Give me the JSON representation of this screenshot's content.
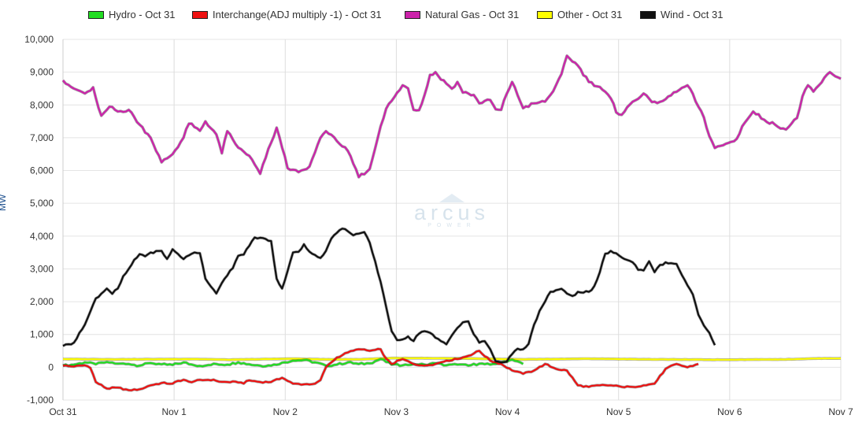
{
  "legend": {
    "items": [
      {
        "label": "Hydro - Oct 31",
        "color": "#22dd22"
      },
      {
        "label": "Interchange(ADJ multiply -1) - Oct 31",
        "color": "#ee1111"
      },
      {
        "label": "Natural Gas - Oct 31",
        "color": "#cc22aa"
      },
      {
        "label": "Other - Oct 31",
        "color": "#ffff00"
      },
      {
        "label": "Wind - Oct 31",
        "color": "#111111"
      }
    ]
  },
  "y_unit_label": "MW",
  "watermark": {
    "brand": "arcus",
    "sub": "POWER"
  },
  "chart_data": {
    "type": "line",
    "x_start": "Oct 31",
    "x_step_hours": 2,
    "x_ticks": [
      "Oct 31",
      "Nov 1",
      "Nov 2",
      "Nov 3",
      "Nov 4",
      "Nov 5",
      "Nov 6",
      "Nov 7"
    ],
    "y_ticks": [
      "-1,000",
      "0",
      "1,000",
      "2,000",
      "3,000",
      "4,000",
      "5,000",
      "6,000",
      "7,000",
      "8,000",
      "9,000",
      "10,000"
    ],
    "ylim": [
      -1000,
      10000
    ],
    "grid": true,
    "legend_position": "top",
    "series": [
      {
        "name": "Hydro - Oct 31",
        "color": "#22dd22",
        "anchors": [
          [
            0,
            50
          ],
          [
            4,
            80
          ],
          [
            8,
            150
          ],
          [
            12,
            90
          ],
          [
            16,
            160
          ],
          [
            20,
            110
          ],
          [
            24,
            100
          ],
          [
            28,
            50
          ],
          [
            32,
            130
          ],
          [
            36,
            90
          ],
          [
            40,
            70
          ],
          [
            44,
            150
          ],
          [
            48,
            60
          ],
          [
            52,
            50
          ],
          [
            56,
            100
          ],
          [
            60,
            80
          ],
          [
            64,
            150
          ],
          [
            68,
            90
          ],
          [
            72,
            50
          ],
          [
            76,
            50
          ],
          [
            80,
            140
          ],
          [
            84,
            200
          ],
          [
            88,
            220
          ],
          [
            92,
            150
          ],
          [
            96,
            50
          ],
          [
            100,
            80
          ],
          [
            104,
            150
          ],
          [
            108,
            100
          ],
          [
            112,
            120
          ],
          [
            116,
            250
          ],
          [
            120,
            80
          ],
          [
            124,
            60
          ],
          [
            128,
            100
          ],
          [
            132,
            80
          ],
          [
            136,
            120
          ],
          [
            140,
            60
          ],
          [
            144,
            80
          ],
          [
            148,
            50
          ],
          [
            152,
            110
          ],
          [
            156,
            80
          ],
          [
            160,
            150
          ],
          [
            164,
            230
          ],
          [
            168,
            100
          ]
        ]
      },
      {
        "name": "Interchange(ADJ multiply -1) - Oct 31",
        "color": "#ee1111",
        "anchors": [
          [
            0,
            50
          ],
          [
            4,
            20
          ],
          [
            8,
            60
          ],
          [
            10,
            0
          ],
          [
            12,
            -450
          ],
          [
            16,
            -650
          ],
          [
            20,
            -620
          ],
          [
            24,
            -700
          ],
          [
            28,
            -670
          ],
          [
            32,
            -550
          ],
          [
            36,
            -480
          ],
          [
            40,
            -500
          ],
          [
            42,
            -420
          ],
          [
            44,
            -380
          ],
          [
            46,
            -450
          ],
          [
            50,
            -400
          ],
          [
            54,
            -380
          ],
          [
            58,
            -450
          ],
          [
            62,
            -450
          ],
          [
            66,
            -480
          ],
          [
            68,
            -400
          ],
          [
            72,
            -450
          ],
          [
            76,
            -450
          ],
          [
            80,
            -320
          ],
          [
            84,
            -500
          ],
          [
            88,
            -520
          ],
          [
            92,
            -500
          ],
          [
            94,
            -400
          ],
          [
            96,
            0
          ],
          [
            100,
            300
          ],
          [
            104,
            450
          ],
          [
            108,
            550
          ],
          [
            112,
            500
          ],
          [
            116,
            550
          ],
          [
            118,
            250
          ],
          [
            120,
            100
          ],
          [
            124,
            250
          ],
          [
            128,
            100
          ],
          [
            132,
            50
          ],
          [
            136,
            100
          ],
          [
            140,
            200
          ],
          [
            144,
            250
          ],
          [
            148,
            350
          ],
          [
            152,
            500
          ],
          [
            156,
            200
          ],
          [
            160,
            100
          ],
          [
            164,
            -100
          ],
          [
            168,
            -200
          ],
          [
            172,
            -100
          ],
          [
            176,
            100
          ],
          [
            180,
            -50
          ],
          [
            184,
            -100
          ],
          [
            188,
            -550
          ],
          [
            192,
            -600
          ],
          [
            196,
            -550
          ],
          [
            200,
            -550
          ],
          [
            204,
            -600
          ],
          [
            208,
            -600
          ],
          [
            212,
            -550
          ],
          [
            216,
            -500
          ],
          [
            220,
            -50
          ],
          [
            224,
            100
          ],
          [
            228,
            0
          ],
          [
            232,
            100
          ]
        ]
      },
      {
        "name": "Natural Gas - Oct 31",
        "color": "#cc22aa",
        "anchors": [
          [
            0,
            8750
          ],
          [
            4,
            8500
          ],
          [
            8,
            8350
          ],
          [
            11,
            8500
          ],
          [
            14,
            7650
          ],
          [
            17,
            7950
          ],
          [
            20,
            7800
          ],
          [
            24,
            7850
          ],
          [
            28,
            7400
          ],
          [
            32,
            7000
          ],
          [
            36,
            6250
          ],
          [
            40,
            6500
          ],
          [
            44,
            7000
          ],
          [
            46,
            7450
          ],
          [
            50,
            7200
          ],
          [
            52,
            7500
          ],
          [
            56,
            7100
          ],
          [
            58,
            6550
          ],
          [
            60,
            7200
          ],
          [
            64,
            6700
          ],
          [
            68,
            6450
          ],
          [
            72,
            5900
          ],
          [
            74,
            6400
          ],
          [
            78,
            7300
          ],
          [
            82,
            6100
          ],
          [
            86,
            5950
          ],
          [
            90,
            6100
          ],
          [
            94,
            7000
          ],
          [
            96,
            7200
          ],
          [
            100,
            6900
          ],
          [
            104,
            6600
          ],
          [
            108,
            5800
          ],
          [
            112,
            6050
          ],
          [
            116,
            7350
          ],
          [
            118,
            7900
          ],
          [
            122,
            8350
          ],
          [
            124,
            8600
          ],
          [
            126,
            8500
          ],
          [
            128,
            7850
          ],
          [
            130,
            7850
          ],
          [
            132,
            8300
          ],
          [
            134,
            8900
          ],
          [
            136,
            9000
          ],
          [
            138,
            8800
          ],
          [
            140,
            8650
          ],
          [
            142,
            8500
          ],
          [
            144,
            8700
          ],
          [
            146,
            8400
          ],
          [
            150,
            8300
          ],
          [
            152,
            8050
          ],
          [
            156,
            8150
          ],
          [
            158,
            7850
          ],
          [
            160,
            7850
          ],
          [
            162,
            8350
          ],
          [
            164,
            8700
          ],
          [
            168,
            7900
          ],
          [
            172,
            8050
          ],
          [
            176,
            8100
          ],
          [
            178,
            8300
          ],
          [
            182,
            8900
          ],
          [
            184,
            9500
          ],
          [
            188,
            9200
          ],
          [
            190,
            8950
          ],
          [
            192,
            8700
          ],
          [
            196,
            8550
          ],
          [
            200,
            8200
          ],
          [
            202,
            7800
          ],
          [
            204,
            7700
          ],
          [
            208,
            8100
          ],
          [
            212,
            8350
          ],
          [
            214,
            8150
          ],
          [
            218,
            8050
          ],
          [
            222,
            8300
          ],
          [
            226,
            8500
          ],
          [
            228,
            8600
          ],
          [
            230,
            8300
          ],
          [
            234,
            7600
          ],
          [
            236,
            7050
          ],
          [
            238,
            6700
          ],
          [
            242,
            6800
          ],
          [
            246,
            6950
          ],
          [
            248,
            7350
          ],
          [
            252,
            7800
          ],
          [
            256,
            7550
          ],
          [
            260,
            7400
          ],
          [
            264,
            7250
          ],
          [
            268,
            7600
          ],
          [
            270,
            8250
          ],
          [
            272,
            8600
          ],
          [
            274,
            8400
          ],
          [
            278,
            8800
          ],
          [
            280,
            9000
          ],
          [
            284,
            8800
          ]
        ]
      },
      {
        "name": "Other - Oct 31",
        "color": "#ffff00",
        "anchors": [
          [
            0,
            250
          ],
          [
            20,
            240
          ],
          [
            48,
            250
          ],
          [
            60,
            230
          ],
          [
            84,
            260
          ],
          [
            96,
            240
          ],
          [
            108,
            240
          ],
          [
            120,
            280
          ],
          [
            144,
            270
          ],
          [
            168,
            240
          ],
          [
            192,
            260
          ],
          [
            216,
            240
          ],
          [
            240,
            230
          ],
          [
            264,
            240
          ],
          [
            276,
            270
          ],
          [
            284,
            270
          ]
        ]
      },
      {
        "name": "Wind - Oct 31",
        "color": "#111111",
        "anchors": [
          [
            0,
            650
          ],
          [
            4,
            750
          ],
          [
            8,
            1300
          ],
          [
            12,
            2100
          ],
          [
            16,
            2400
          ],
          [
            18,
            2250
          ],
          [
            20,
            2400
          ],
          [
            22,
            2750
          ],
          [
            26,
            3250
          ],
          [
            28,
            3450
          ],
          [
            30,
            3400
          ],
          [
            32,
            3500
          ],
          [
            36,
            3550
          ],
          [
            38,
            3300
          ],
          [
            40,
            3600
          ],
          [
            44,
            3300
          ],
          [
            48,
            3500
          ],
          [
            50,
            3500
          ],
          [
            52,
            2700
          ],
          [
            56,
            2250
          ],
          [
            58,
            2550
          ],
          [
            62,
            3050
          ],
          [
            64,
            3400
          ],
          [
            66,
            3450
          ],
          [
            70,
            3950
          ],
          [
            72,
            3950
          ],
          [
            74,
            3900
          ],
          [
            76,
            3850
          ],
          [
            78,
            2700
          ],
          [
            80,
            2400
          ],
          [
            84,
            3500
          ],
          [
            86,
            3500
          ],
          [
            88,
            3750
          ],
          [
            90,
            3500
          ],
          [
            94,
            3350
          ],
          [
            96,
            3550
          ],
          [
            98,
            3950
          ],
          [
            102,
            4250
          ],
          [
            106,
            4050
          ],
          [
            110,
            4100
          ],
          [
            112,
            3800
          ],
          [
            116,
            2600
          ],
          [
            120,
            1100
          ],
          [
            122,
            800
          ],
          [
            124,
            850
          ],
          [
            126,
            950
          ],
          [
            128,
            800
          ],
          [
            130,
            1050
          ],
          [
            132,
            1100
          ],
          [
            134,
            1050
          ],
          [
            136,
            900
          ],
          [
            138,
            800
          ],
          [
            140,
            700
          ],
          [
            142,
            1000
          ],
          [
            144,
            1200
          ],
          [
            146,
            1350
          ],
          [
            148,
            1400
          ],
          [
            150,
            1000
          ],
          [
            152,
            750
          ],
          [
            154,
            800
          ],
          [
            156,
            550
          ],
          [
            158,
            200
          ],
          [
            160,
            150
          ],
          [
            162,
            200
          ],
          [
            164,
            400
          ],
          [
            166,
            550
          ],
          [
            168,
            550
          ],
          [
            170,
            700
          ],
          [
            172,
            1300
          ],
          [
            174,
            1700
          ],
          [
            176,
            2000
          ],
          [
            178,
            2300
          ],
          [
            182,
            2400
          ],
          [
            184,
            2250
          ],
          [
            186,
            2150
          ],
          [
            188,
            2300
          ],
          [
            192,
            2300
          ],
          [
            194,
            2450
          ],
          [
            196,
            2900
          ],
          [
            198,
            3450
          ],
          [
            200,
            3550
          ],
          [
            204,
            3350
          ],
          [
            208,
            3200
          ],
          [
            210,
            3000
          ],
          [
            212,
            2950
          ],
          [
            214,
            3250
          ],
          [
            216,
            2900
          ],
          [
            218,
            3100
          ],
          [
            220,
            3200
          ],
          [
            224,
            3150
          ],
          [
            228,
            2500
          ],
          [
            230,
            2200
          ],
          [
            232,
            1600
          ],
          [
            234,
            1250
          ],
          [
            236,
            1050
          ],
          [
            238,
            700
          ]
        ]
      }
    ]
  }
}
